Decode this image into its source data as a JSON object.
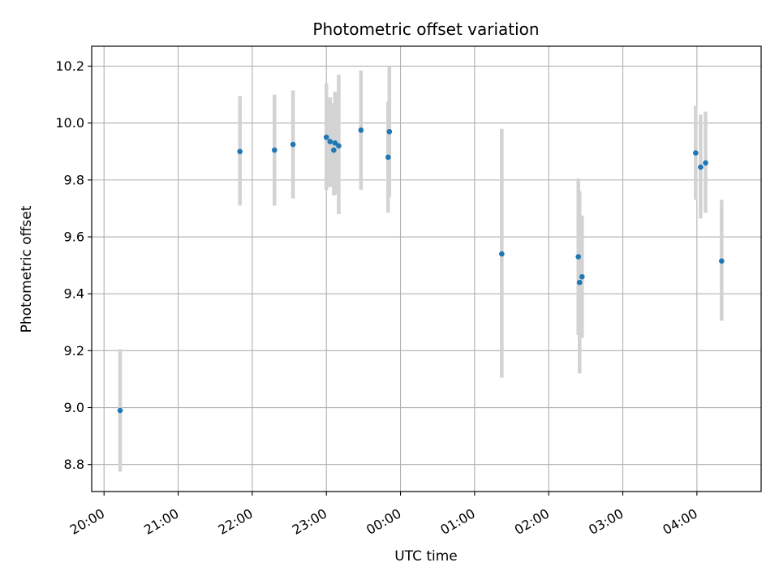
{
  "chart_data": {
    "type": "scatter",
    "title": "Photometric offset variation",
    "xlabel": "UTC time",
    "ylabel": "Photometric offset",
    "x_unit": "UTC time of day (continuing past midnight)",
    "xlim": [
      "19:50",
      "04:52"
    ],
    "ylim": [
      8.705,
      10.27
    ],
    "x_ticks": [
      "20:00",
      "21:00",
      "22:00",
      "23:00",
      "00:00",
      "01:00",
      "02:00",
      "03:00",
      "04:00"
    ],
    "y_ticks": [
      "8.8",
      "9.0",
      "9.2",
      "9.4",
      "9.6",
      "9.8",
      "10.0",
      "10.2"
    ],
    "grid": true,
    "series": [
      {
        "marker_color": "#1f77b4",
        "errorbar_color": "#d3d3d3",
        "points": [
          {
            "x": "20:13",
            "y": 8.99,
            "ylow": 8.775,
            "yhigh": 9.205
          },
          {
            "x": "21:50",
            "y": 9.9,
            "ylow": 9.71,
            "yhigh": 10.095
          },
          {
            "x": "22:18",
            "y": 9.905,
            "ylow": 9.71,
            "yhigh": 10.1
          },
          {
            "x": "22:33",
            "y": 9.925,
            "ylow": 9.735,
            "yhigh": 10.115
          },
          {
            "x": "23:00",
            "y": 9.95,
            "ylow": 9.765,
            "yhigh": 10.14
          },
          {
            "x": "23:03",
            "y": 9.935,
            "ylow": 9.775,
            "yhigh": 10.09
          },
          {
            "x": "23:06",
            "y": 9.905,
            "ylow": 9.745,
            "yhigh": 10.07
          },
          {
            "x": "23:07",
            "y": 9.93,
            "ylow": 9.75,
            "yhigh": 10.11
          },
          {
            "x": "23:10",
            "y": 9.92,
            "ylow": 9.68,
            "yhigh": 10.17
          },
          {
            "x": "23:28",
            "y": 9.975,
            "ylow": 9.765,
            "yhigh": 10.185
          },
          {
            "x": "23:50",
            "y": 9.88,
            "ylow": 9.685,
            "yhigh": 10.075
          },
          {
            "x": "23:51",
            "y": 9.97,
            "ylow": 9.74,
            "yhigh": 10.2
          },
          {
            "x": "01:22",
            "y": 9.54,
            "ylow": 9.105,
            "yhigh": 9.98
          },
          {
            "x": "02:24",
            "y": 9.53,
            "ylow": 9.255,
            "yhigh": 9.805
          },
          {
            "x": "02:25",
            "y": 9.44,
            "ylow": 9.12,
            "yhigh": 9.76
          },
          {
            "x": "02:27",
            "y": 9.46,
            "ylow": 9.245,
            "yhigh": 9.675
          },
          {
            "x": "03:59",
            "y": 9.895,
            "ylow": 9.73,
            "yhigh": 10.06
          },
          {
            "x": "04:03",
            "y": 9.845,
            "ylow": 9.665,
            "yhigh": 10.03
          },
          {
            "x": "04:07",
            "y": 9.86,
            "ylow": 9.685,
            "yhigh": 10.04
          },
          {
            "x": "04:20",
            "y": 9.515,
            "ylow": 9.305,
            "yhigh": 9.73
          }
        ]
      }
    ]
  }
}
